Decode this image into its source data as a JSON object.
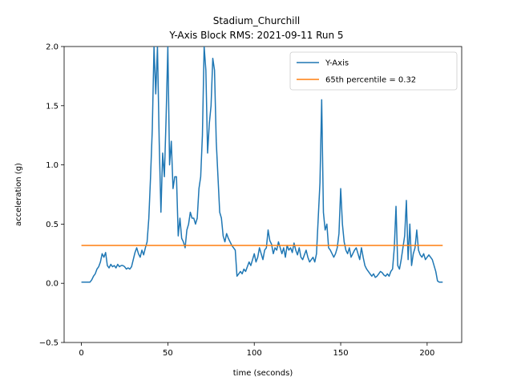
{
  "chart_data": {
    "type": "line",
    "title": "Stadium_Churchill",
    "subtitle": "Y-Axis Block RMS: 2021-09-11 Run 5",
    "xlabel": "time (seconds)",
    "ylabel": "acceleration (g)",
    "xlim": [
      -10,
      220
    ],
    "ylim": [
      -0.5,
      2.0
    ],
    "xticks": [
      0,
      50,
      100,
      150,
      200
    ],
    "yticks": [
      -0.5,
      0.0,
      0.5,
      1.0,
      1.5,
      2.0
    ],
    "xtick_labels": [
      "0",
      "50",
      "100",
      "150",
      "200"
    ],
    "ytick_labels": [
      "−0.5",
      "0.0",
      "0.5",
      "1.0",
      "1.5",
      "2.0"
    ],
    "legend_position": "top-right",
    "grid": false,
    "series": [
      {
        "name": "Y-Axis",
        "color": "#1f77b4",
        "x": [
          0,
          5,
          6,
          7,
          8,
          9,
          10,
          11,
          12,
          13,
          14,
          15,
          16,
          17,
          18,
          19,
          20,
          21,
          22,
          23,
          24,
          25,
          26,
          27,
          28,
          29,
          30,
          31,
          32,
          33,
          34,
          35,
          36,
          37,
          38,
          39,
          40,
          41,
          42,
          43,
          44,
          45,
          46,
          47,
          48,
          49,
          50,
          51,
          52,
          53,
          54,
          55,
          56,
          57,
          58,
          59,
          60,
          61,
          62,
          63,
          64,
          65,
          66,
          67,
          68,
          69,
          70,
          71,
          72,
          73,
          74,
          75,
          76,
          77,
          78,
          79,
          80,
          81,
          82,
          83,
          84,
          85,
          86,
          87,
          88,
          89,
          90,
          91,
          92,
          93,
          94,
          95,
          96,
          97,
          98,
          99,
          100,
          101,
          102,
          103,
          104,
          105,
          106,
          107,
          108,
          109,
          110,
          111,
          112,
          113,
          114,
          115,
          116,
          117,
          118,
          119,
          120,
          121,
          122,
          123,
          124,
          125,
          126,
          127,
          128,
          129,
          130,
          131,
          132,
          133,
          134,
          135,
          136,
          137,
          138,
          139,
          140,
          141,
          142,
          143,
          144,
          145,
          146,
          147,
          148,
          149,
          150,
          151,
          152,
          153,
          154,
          155,
          156,
          157,
          158,
          159,
          160,
          161,
          162,
          163,
          164,
          165,
          166,
          167,
          168,
          169,
          170,
          171,
          172,
          173,
          174,
          175,
          176,
          177,
          178,
          179,
          180,
          181,
          182,
          183,
          184,
          185,
          186,
          187,
          188,
          189,
          190,
          191,
          192,
          193,
          194,
          195,
          196,
          197,
          198,
          199,
          200,
          201,
          202,
          203,
          204,
          205,
          206,
          207,
          208,
          209
        ],
        "y": [
          0.01,
          0.01,
          0.03,
          0.06,
          0.08,
          0.12,
          0.14,
          0.18,
          0.25,
          0.22,
          0.26,
          0.15,
          0.13,
          0.16,
          0.14,
          0.15,
          0.13,
          0.16,
          0.14,
          0.15,
          0.15,
          0.14,
          0.12,
          0.13,
          0.12,
          0.14,
          0.2,
          0.26,
          0.3,
          0.25,
          0.22,
          0.28,
          0.24,
          0.3,
          0.35,
          0.55,
          0.9,
          1.3,
          2.0,
          1.6,
          2.0,
          1.2,
          0.6,
          1.1,
          0.9,
          1.4,
          2.0,
          1.0,
          1.2,
          0.8,
          0.9,
          0.9,
          0.4,
          0.55,
          0.38,
          0.35,
          0.3,
          0.45,
          0.5,
          0.6,
          0.55,
          0.55,
          0.5,
          0.55,
          0.8,
          0.9,
          1.25,
          2.0,
          1.8,
          1.1,
          1.35,
          1.5,
          1.9,
          1.8,
          1.2,
          0.9,
          0.6,
          0.55,
          0.4,
          0.35,
          0.42,
          0.38,
          0.35,
          0.32,
          0.3,
          0.28,
          0.06,
          0.08,
          0.1,
          0.08,
          0.12,
          0.1,
          0.14,
          0.18,
          0.15,
          0.2,
          0.25,
          0.18,
          0.22,
          0.3,
          0.25,
          0.2,
          0.28,
          0.3,
          0.45,
          0.36,
          0.33,
          0.25,
          0.3,
          0.28,
          0.35,
          0.3,
          0.25,
          0.3,
          0.22,
          0.32,
          0.28,
          0.3,
          0.26,
          0.34,
          0.28,
          0.24,
          0.3,
          0.22,
          0.2,
          0.24,
          0.28,
          0.22,
          0.18,
          0.2,
          0.22,
          0.18,
          0.25,
          0.55,
          0.85,
          1.55,
          0.6,
          0.45,
          0.5,
          0.3,
          0.28,
          0.25,
          0.22,
          0.25,
          0.3,
          0.42,
          0.8,
          0.5,
          0.35,
          0.28,
          0.25,
          0.3,
          0.22,
          0.25,
          0.28,
          0.3,
          0.25,
          0.2,
          0.3,
          0.22,
          0.15,
          0.12,
          0.1,
          0.08,
          0.06,
          0.08,
          0.05,
          0.06,
          0.08,
          0.1,
          0.09,
          0.07,
          0.06,
          0.08,
          0.06,
          0.1,
          0.12,
          0.3,
          0.65,
          0.15,
          0.12,
          0.2,
          0.3,
          0.4,
          0.7,
          0.2,
          0.5,
          0.15,
          0.25,
          0.3,
          0.45,
          0.28,
          0.24,
          0.22,
          0.25,
          0.2,
          0.22,
          0.24,
          0.22,
          0.2,
          0.15,
          0.1,
          0.02,
          0.01,
          0.01,
          0.01
        ]
      },
      {
        "name": "65th percentile = 0.32",
        "color": "#ff7f0e",
        "x": [
          0,
          209
        ],
        "y": [
          0.32,
          0.32
        ]
      }
    ]
  }
}
